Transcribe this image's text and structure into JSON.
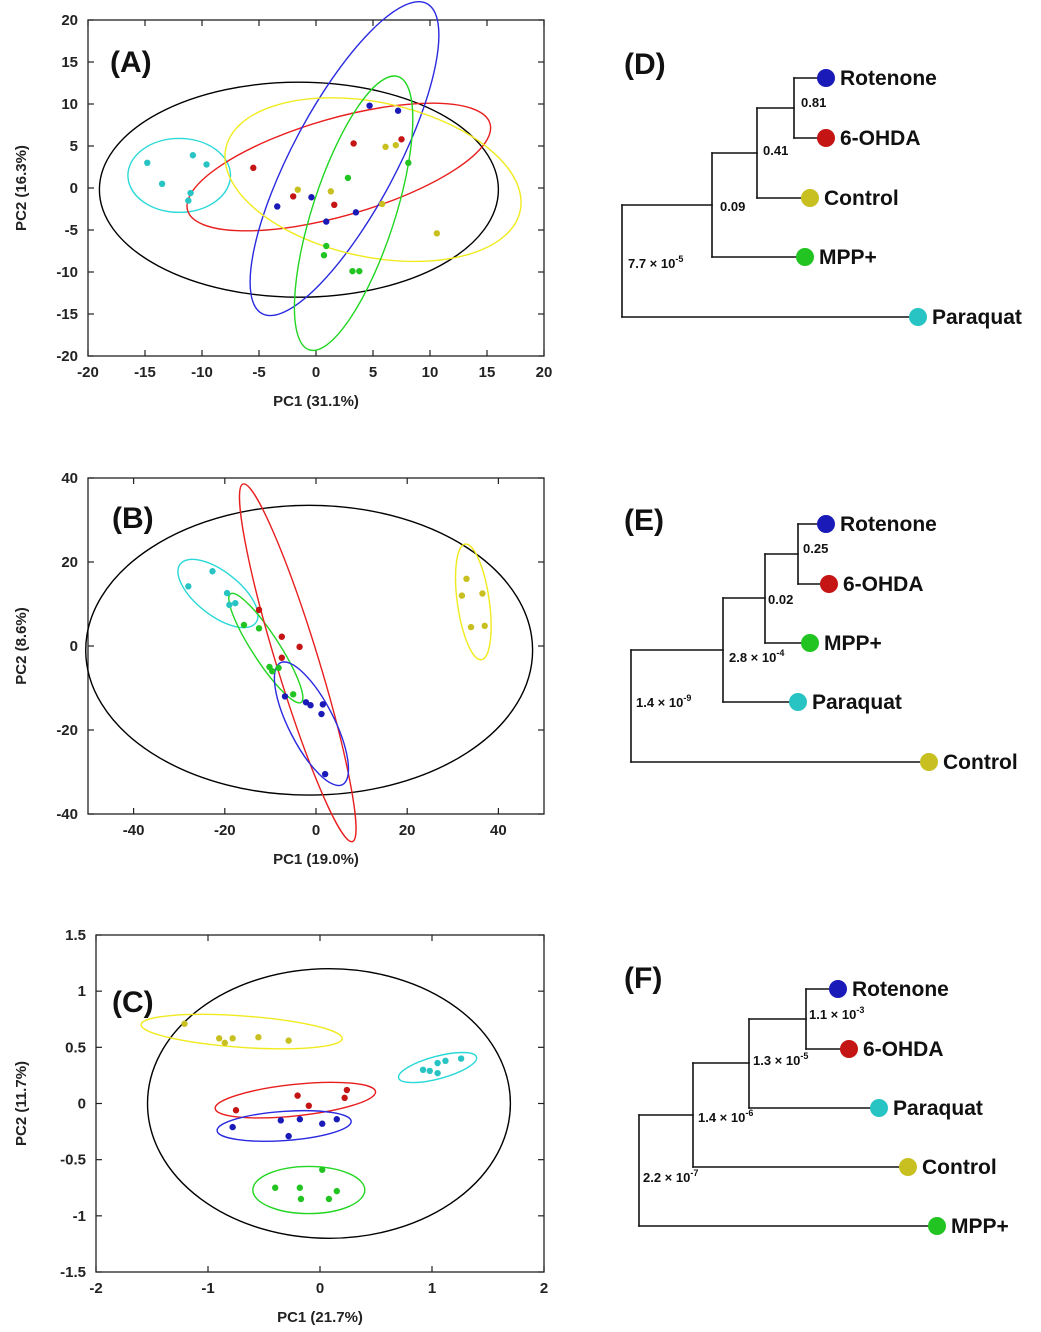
{
  "colors": {
    "Rotenone": "#1a1ab8",
    "6-OHDA": "#c41414",
    "Control": "#c8c020",
    "MPP+": "#22c422",
    "Paraquat": "#28c4c4"
  },
  "ellipse_colors": {
    "Rotenone": "#2a2ae0",
    "6-OHDA": "#e81e1e",
    "Control": "#f0ea1e",
    "MPP+": "#22d622",
    "Paraquat": "#2ad8d8",
    "All": "#000000"
  },
  "chart_data": [
    {
      "panel": "(A)",
      "type": "scatter",
      "xlabel": "PC1 (31.1%)",
      "ylabel": "PC2 (16.3%)",
      "xlim": [
        -20,
        20
      ],
      "ylim": [
        -20,
        20
      ],
      "xticks": [
        -20,
        -15,
        -10,
        -5,
        0,
        5,
        10,
        15,
        20
      ],
      "yticks": [
        -20,
        -15,
        -10,
        -5,
        0,
        5,
        10,
        15,
        20
      ],
      "tick_labels_x": [
        "-20",
        "-15",
        "-10",
        "-5",
        "0",
        "5",
        "10",
        "15",
        "20"
      ],
      "tick_labels_y": [
        "-20",
        "-15",
        "-10",
        "-5",
        "0",
        "5",
        "10",
        "15",
        "20"
      ],
      "series": [
        {
          "name": "Paraquat",
          "points": [
            [
              -14.8,
              3.0
            ],
            [
              -13.5,
              0.5
            ],
            [
              -10.8,
              3.9
            ],
            [
              -9.6,
              2.8
            ],
            [
              -11.0,
              -0.6
            ],
            [
              -11.2,
              -1.5
            ]
          ]
        },
        {
          "name": "6-OHDA",
          "points": [
            [
              -5.5,
              2.4
            ],
            [
              -2.0,
              -1.0
            ],
            [
              1.6,
              -2.0
            ],
            [
              3.3,
              5.3
            ],
            [
              7.5,
              5.8
            ]
          ]
        },
        {
          "name": "Rotenone",
          "points": [
            [
              -3.4,
              -2.2
            ],
            [
              -0.4,
              -1.1
            ],
            [
              0.9,
              -4.0
            ],
            [
              3.5,
              -2.9
            ],
            [
              4.7,
              9.8
            ],
            [
              7.2,
              9.2
            ]
          ]
        },
        {
          "name": "Control",
          "points": [
            [
              -1.6,
              -0.2
            ],
            [
              1.3,
              -0.4
            ],
            [
              5.8,
              -1.9
            ],
            [
              6.1,
              4.9
            ],
            [
              7.0,
              5.1
            ],
            [
              10.6,
              -5.4
            ]
          ]
        },
        {
          "name": "MPP+",
          "points": [
            [
              2.8,
              1.2
            ],
            [
              0.7,
              -8.0
            ],
            [
              0.9,
              -6.9
            ],
            [
              3.2,
              -9.9
            ],
            [
              3.8,
              -9.9
            ],
            [
              8.1,
              3.0
            ]
          ]
        }
      ],
      "ellipses": [
        {
          "group": "All",
          "cx": -1.5,
          "cy": -0.2,
          "rx": 17.5,
          "ry": 12.8,
          "angle": 0
        },
        {
          "group": "Paraquat",
          "cx": -12.0,
          "cy": 1.5,
          "rx": 4.5,
          "ry": 4.4,
          "angle": 0
        },
        {
          "group": "6-OHDA",
          "cx": 2.0,
          "cy": 2.5,
          "rx": 13.8,
          "ry": 5.8,
          "angle": 16
        },
        {
          "group": "Rotenone",
          "cx": 2.5,
          "cy": 3.5,
          "rx": 15.4,
          "ry": 6.2,
          "angle": 62
        },
        {
          "group": "Control",
          "cx": 5.0,
          "cy": 1.0,
          "rx": 13.2,
          "ry": 9.2,
          "angle": -12
        },
        {
          "group": "MPP+",
          "cx": 3.3,
          "cy": -3.0,
          "rx": 12.6,
          "ry": 4.9,
          "angle": 72
        }
      ]
    },
    {
      "panel": "(B)",
      "type": "scatter",
      "xlabel": "PC1 (19.0%)",
      "ylabel": "PC2 (8.6%)",
      "xlim": [
        -50,
        50
      ],
      "ylim": [
        -40,
        40
      ],
      "xticks": [
        -40,
        -20,
        0,
        20,
        40
      ],
      "yticks": [
        -40,
        -20,
        0,
        20,
        40
      ],
      "tick_labels_x": [
        "-40",
        "-20",
        "0",
        "20",
        "40"
      ],
      "tick_labels_y": [
        "-40",
        "-20",
        "0",
        "20",
        "40"
      ],
      "series": [
        {
          "name": "Paraquat",
          "points": [
            [
              -28.0,
              14.2
            ],
            [
              -22.7,
              17.8
            ],
            [
              -19.5,
              12.6
            ],
            [
              -19.0,
              9.8
            ],
            [
              -17.7,
              10.2
            ]
          ]
        },
        {
          "name": "MPP+",
          "points": [
            [
              -15.8,
              5.0
            ],
            [
              -12.5,
              4.2
            ],
            [
              -10.2,
              -5.0
            ],
            [
              -9.6,
              -6.0
            ],
            [
              -8.2,
              -5.2
            ],
            [
              -5.0,
              -11.5
            ]
          ]
        },
        {
          "name": "6-OHDA",
          "points": [
            [
              -12.5,
              8.6
            ],
            [
              -7.5,
              2.2
            ],
            [
              -7.5,
              -2.8
            ],
            [
              -3.6,
              -0.2
            ]
          ]
        },
        {
          "name": "Rotenone",
          "points": [
            [
              -6.8,
              -12.0
            ],
            [
              -2.2,
              -13.4
            ],
            [
              -1.2,
              -14.1
            ],
            [
              1.5,
              -13.9
            ],
            [
              1.2,
              -16.2
            ],
            [
              2.0,
              -30.5
            ]
          ]
        },
        {
          "name": "Control",
          "points": [
            [
              32.0,
              12.0
            ],
            [
              33.0,
              16.0
            ],
            [
              34.0,
              4.5
            ],
            [
              36.5,
              12.5
            ],
            [
              37.0,
              4.8
            ]
          ]
        }
      ],
      "ellipses": [
        {
          "group": "All",
          "cx": -1.5,
          "cy": -1.0,
          "rx": 49.0,
          "ry": 34.5,
          "angle": 0
        },
        {
          "group": "Paraquat",
          "cx": -21.5,
          "cy": 12.5,
          "rx": 10.5,
          "ry": 5.2,
          "angle": -38
        },
        {
          "group": "MPP+",
          "cx": -11.0,
          "cy": -0.5,
          "rx": 14.2,
          "ry": 3.2,
          "angle": -57
        },
        {
          "group": "6-OHDA",
          "cx": -4.0,
          "cy": -4.0,
          "rx": 41.0,
          "ry": 5.0,
          "angle": -73
        },
        {
          "group": "Rotenone",
          "cx": -1.0,
          "cy": -18.5,
          "rx": 15.0,
          "ry": 5.4,
          "angle": -63
        },
        {
          "group": "Control",
          "cx": 34.5,
          "cy": 10.5,
          "rx": 12.8,
          "ry": 3.8,
          "angle": -82
        }
      ]
    },
    {
      "panel": "(C)",
      "type": "scatter",
      "xlabel": "PC1 (21.7%)",
      "ylabel": "PC2 (11.7%)",
      "xlim": [
        -2,
        2
      ],
      "ylim": [
        -1.5,
        1.5
      ],
      "xticks": [
        -2,
        -1,
        0,
        1,
        2
      ],
      "yticks": [
        -1.5,
        -1,
        -0.5,
        0,
        0.5,
        1,
        1.5
      ],
      "tick_labels_x": [
        "-2",
        "-1",
        "0",
        "1",
        "2"
      ],
      "tick_labels_y": [
        "-1.5",
        "-1",
        "-0.5",
        "0",
        "0.5",
        "1",
        "1.5"
      ],
      "series": [
        {
          "name": "Control",
          "points": [
            [
              -1.21,
              0.71
            ],
            [
              -0.9,
              0.58
            ],
            [
              -0.85,
              0.54
            ],
            [
              -0.78,
              0.58
            ],
            [
              -0.55,
              0.59
            ],
            [
              -0.28,
              0.56
            ]
          ]
        },
        {
          "name": "Paraquat",
          "points": [
            [
              0.92,
              0.3
            ],
            [
              0.98,
              0.29
            ],
            [
              1.05,
              0.36
            ],
            [
              1.05,
              0.27
            ],
            [
              1.12,
              0.38
            ],
            [
              1.26,
              0.4
            ]
          ]
        },
        {
          "name": "6-OHDA",
          "points": [
            [
              -0.75,
              -0.06
            ],
            [
              -0.2,
              0.07
            ],
            [
              -0.1,
              -0.02
            ],
            [
              0.22,
              0.05
            ],
            [
              0.24,
              0.12
            ]
          ]
        },
        {
          "name": "Rotenone",
          "points": [
            [
              -0.78,
              -0.21
            ],
            [
              -0.35,
              -0.15
            ],
            [
              -0.28,
              -0.29
            ],
            [
              -0.18,
              -0.14
            ],
            [
              0.02,
              -0.18
            ],
            [
              0.15,
              -0.14
            ]
          ]
        },
        {
          "name": "MPP+",
          "points": [
            [
              -0.4,
              -0.75
            ],
            [
              -0.18,
              -0.75
            ],
            [
              -0.17,
              -0.85
            ],
            [
              0.02,
              -0.59
            ],
            [
              0.08,
              -0.85
            ],
            [
              0.15,
              -0.78
            ]
          ]
        }
      ],
      "ellipses": [
        {
          "group": "All",
          "cx": 0.08,
          "cy": 0.0,
          "rx": 1.62,
          "ry": 1.2,
          "angle": 0
        },
        {
          "group": "Control",
          "cx": -0.7,
          "cy": 0.64,
          "rx": 0.9,
          "ry": 0.14,
          "angle": -4
        },
        {
          "group": "Paraquat",
          "cx": 1.05,
          "cy": 0.32,
          "rx": 0.36,
          "ry": 0.1,
          "angle": 15
        },
        {
          "group": "6-OHDA",
          "cx": -0.22,
          "cy": 0.03,
          "rx": 0.72,
          "ry": 0.14,
          "angle": 6
        },
        {
          "group": "Rotenone",
          "cx": -0.32,
          "cy": -0.2,
          "rx": 0.6,
          "ry": 0.13,
          "angle": 4
        },
        {
          "group": "MPP+",
          "cx": -0.1,
          "cy": -0.77,
          "rx": 0.5,
          "ry": 0.21,
          "angle": 0
        }
      ]
    }
  ],
  "dendrograms": [
    {
      "panel": "(D)",
      "leaves": [
        "Rotenone",
        "6-OHDA",
        "Control",
        "MPP+",
        "Paraquat"
      ],
      "nodes": [
        {
          "label": "0.81",
          "sup": ""
        },
        {
          "label": "0.41",
          "sup": ""
        },
        {
          "label": "0.09",
          "sup": ""
        },
        {
          "label": "7.7 × 10",
          "sup": "-5"
        }
      ]
    },
    {
      "panel": "(E)",
      "leaves": [
        "Rotenone",
        "6-OHDA",
        "MPP+",
        "Paraquat",
        "Control"
      ],
      "nodes": [
        {
          "label": "0.25",
          "sup": ""
        },
        {
          "label": "0.02",
          "sup": ""
        },
        {
          "label": "2.8 × 10",
          "sup": "-4"
        },
        {
          "label": "1.4 × 10",
          "sup": "-9"
        }
      ]
    },
    {
      "panel": "(F)",
      "leaves": [
        "Rotenone",
        "6-OHDA",
        "Paraquat",
        "Control",
        "MPP+"
      ],
      "nodes": [
        {
          "label": "1.1 × 10",
          "sup": "-3"
        },
        {
          "label": "1.3 × 10",
          "sup": "-5"
        },
        {
          "label": "1.4 × 10",
          "sup": "-6"
        },
        {
          "label": "2.2 × 10",
          "sup": "-7"
        }
      ]
    }
  ]
}
